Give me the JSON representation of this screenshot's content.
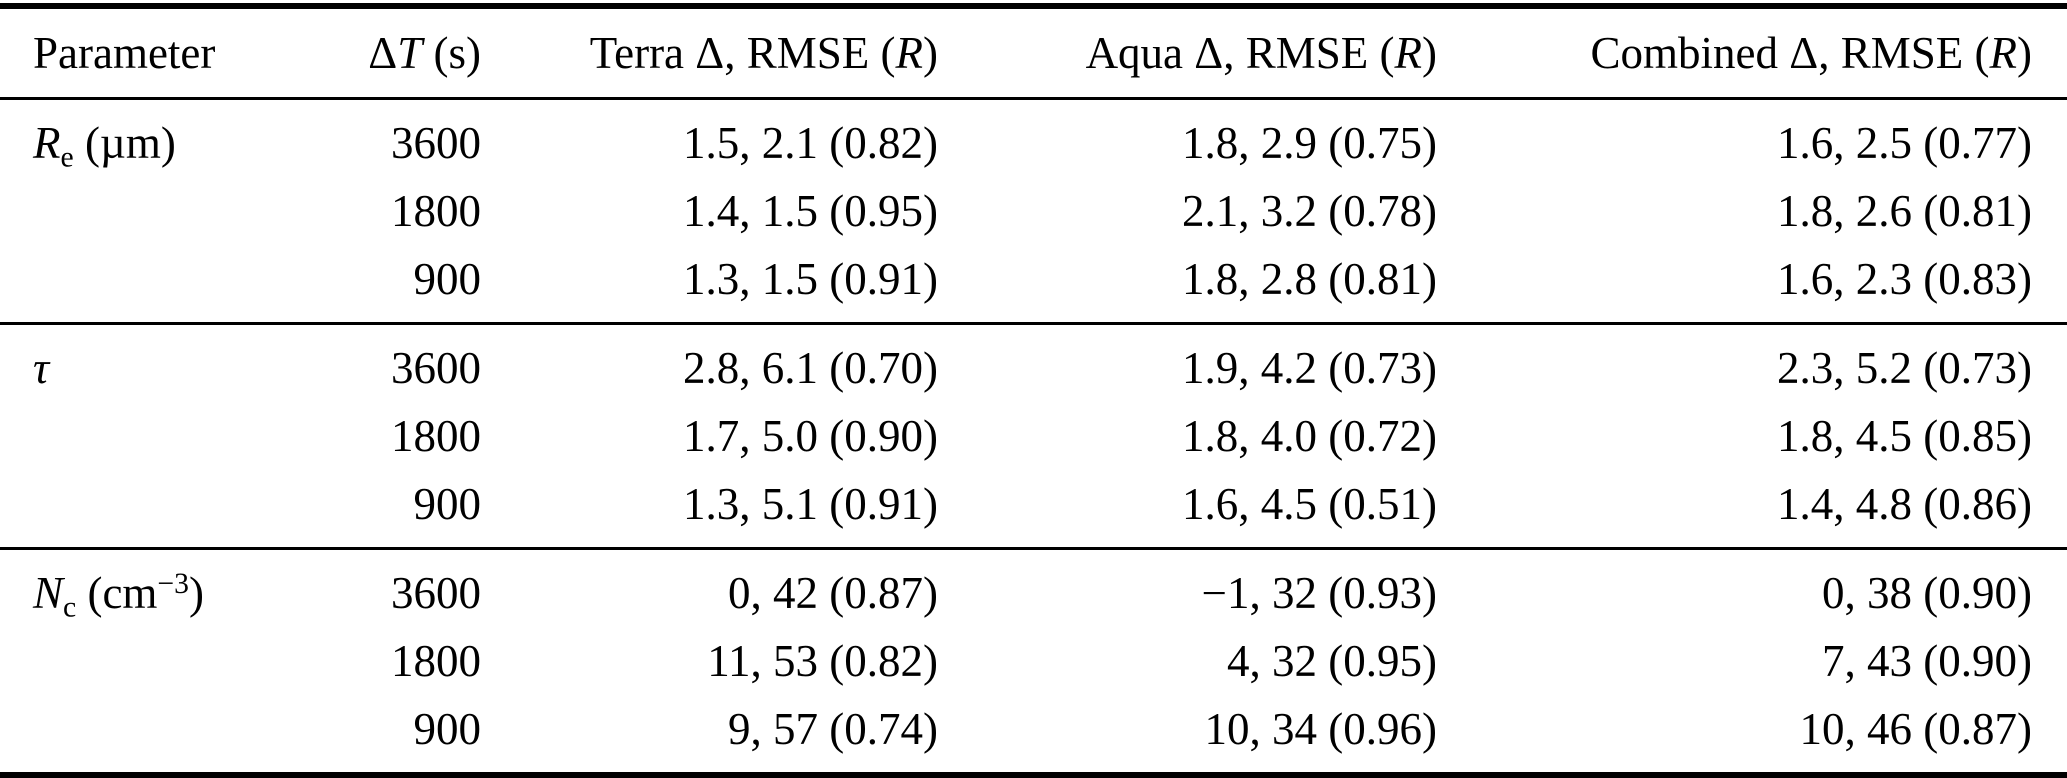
{
  "table": {
    "headers": [
      {
        "pre": "Parameter",
        "it": "",
        "post": ""
      },
      {
        "pre": "Δ",
        "it": "T",
        "post": " (s)"
      },
      {
        "pre": "Terra Δ, RMSE (",
        "it": "R",
        "post": ")"
      },
      {
        "pre": "Aqua Δ, RMSE (",
        "it": "R",
        "post": ")"
      },
      {
        "pre": "Combined Δ, RMSE (",
        "it": "R",
        "post": ")"
      }
    ],
    "sections": [
      {
        "parameter": {
          "it": "R",
          "sub": "e",
          "mid": " (µm)",
          "sup": "",
          "post": ""
        },
        "rows": [
          {
            "dt": "3600",
            "terra": "1.5, 2.1 (0.82)",
            "aqua": "1.8, 2.9 (0.75)",
            "combined": "1.6, 2.5 (0.77)"
          },
          {
            "dt": "1800",
            "terra": "1.4, 1.5 (0.95)",
            "aqua": "2.1, 3.2 (0.78)",
            "combined": "1.8, 2.6 (0.81)"
          },
          {
            "dt": "900",
            "terra": "1.3, 1.5 (0.91)",
            "aqua": "1.8, 2.8 (0.81)",
            "combined": "1.6, 2.3 (0.83)"
          }
        ]
      },
      {
        "parameter": {
          "it": "τ",
          "sub": "",
          "mid": "",
          "sup": "",
          "post": ""
        },
        "rows": [
          {
            "dt": "3600",
            "terra": "2.8, 6.1 (0.70)",
            "aqua": "1.9, 4.2 (0.73)",
            "combined": "2.3, 5.2 (0.73)"
          },
          {
            "dt": "1800",
            "terra": "1.7, 5.0 (0.90)",
            "aqua": "1.8, 4.0 (0.72)",
            "combined": "1.8, 4.5 (0.85)"
          },
          {
            "dt": "900",
            "terra": "1.3, 5.1 (0.91)",
            "aqua": "1.6, 4.5 (0.51)",
            "combined": "1.4, 4.8 (0.86)"
          }
        ]
      },
      {
        "parameter": {
          "it": "N",
          "sub": "c",
          "mid": " (cm",
          "sup": "−3",
          "post": ")"
        },
        "rows": [
          {
            "dt": "3600",
            "terra": "0, 42 (0.87)",
            "aqua": "−1, 32 (0.93)",
            "combined": "0, 38 (0.90)"
          },
          {
            "dt": "1800",
            "terra": "11, 53 (0.82)",
            "aqua": "4, 32 (0.95)",
            "combined": "7, 43 (0.90)"
          },
          {
            "dt": "900",
            "terra": "9, 57 (0.74)",
            "aqua": "10, 34 (0.96)",
            "combined": "10, 46 (0.87)"
          }
        ]
      }
    ]
  },
  "colors": {
    "text": "#000000",
    "rule": "#000000",
    "background": "#ffffff"
  }
}
